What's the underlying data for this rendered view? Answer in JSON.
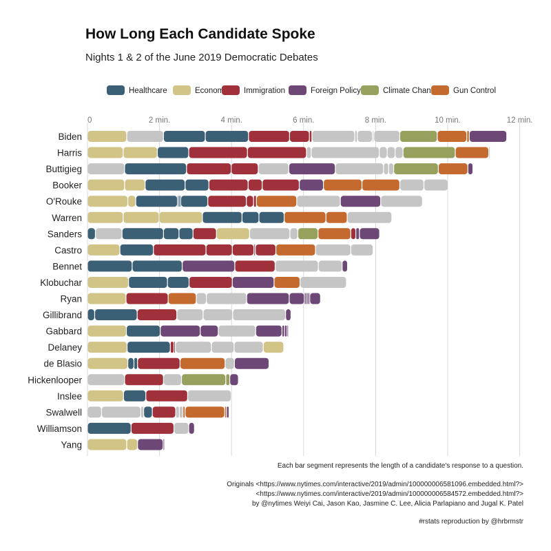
{
  "chart_data": {
    "type": "bar",
    "title": "How Long Each Candidate Spoke",
    "subtitle": "Nights 1 & 2 of the June 2019 Democratic Debates",
    "xlabel": "",
    "ylabel": "",
    "xlim": [
      0,
      12
    ],
    "x_ticks": [
      0,
      2,
      4,
      6,
      8,
      10,
      12
    ],
    "x_tick_labels": [
      "0",
      "2 min.",
      "4 min.",
      "6 min.",
      "8 min.",
      "10 min.",
      "12 min."
    ],
    "grid": "vertical",
    "legend_position": "top",
    "legend": [
      {
        "name": "Healthcare",
        "color": "#3b5f75"
      },
      {
        "name": "Economy",
        "color": "#d2c487"
      },
      {
        "name": "Immigration",
        "color": "#a0303a"
      },
      {
        "name": "Foreign Policy",
        "color": "#6d4776"
      },
      {
        "name": "Climate Change",
        "color": "#97a05c"
      },
      {
        "name": "Gun Control",
        "color": "#c46a2f"
      }
    ],
    "other_color": "#c5c5c5",
    "series_note": "Each candidate's segments in order; seg = [topic, minutes]",
    "candidates": [
      {
        "name": "Biden",
        "segments": [
          [
            "Economy",
            1.09
          ],
          [
            "Other",
            1.02
          ],
          [
            "Healthcare",
            1.16
          ],
          [
            "Healthcare",
            1.2
          ],
          [
            "Immigration",
            1.14
          ],
          [
            "Immigration",
            0.55
          ],
          [
            "Immigration",
            0.07
          ],
          [
            "Other",
            1.19
          ],
          [
            "Other",
            0.07
          ],
          [
            "Other",
            0.42
          ],
          [
            "Other",
            0.04
          ],
          [
            "Other",
            0.72
          ],
          [
            "Climate Change",
            1.04
          ],
          [
            "Gun Control",
            0.82
          ],
          [
            "Gun Control",
            0.07
          ],
          [
            "Foreign Policy",
            1.04
          ]
        ]
      },
      {
        "name": "Harris",
        "segments": [
          [
            "Economy",
            0.99
          ],
          [
            "Economy",
            0.95
          ],
          [
            "Healthcare",
            0.87
          ],
          [
            "Immigration",
            1.63
          ],
          [
            "Immigration",
            1.64
          ],
          [
            "Other",
            0.13
          ],
          [
            "Other",
            1.89
          ],
          [
            "Other",
            0.22
          ],
          [
            "Other",
            0.22
          ],
          [
            "Other",
            0.22
          ],
          [
            "Climate Change",
            1.45
          ],
          [
            "Gun Control",
            0.93
          ],
          [
            "Other",
            0.04
          ]
        ]
      },
      {
        "name": "Buttigieg",
        "segments": [
          [
            "Other",
            1.03
          ],
          [
            "Healthcare",
            1.72
          ],
          [
            "Immigration",
            1.24
          ],
          [
            "Immigration",
            0.75
          ],
          [
            "Other",
            0.85
          ],
          [
            "Foreign Policy",
            1.29
          ],
          [
            "Other",
            1.34
          ],
          [
            "Other",
            0.14
          ],
          [
            "Other",
            0.14
          ],
          [
            "Climate Change",
            1.24
          ],
          [
            "Gun Control",
            0.82
          ],
          [
            "Foreign Policy",
            0.14
          ]
        ]
      },
      {
        "name": "Booker",
        "segments": [
          [
            "Economy",
            1.03
          ],
          [
            "Economy",
            0.57
          ],
          [
            "Healthcare",
            1.11
          ],
          [
            "Healthcare",
            0.66
          ],
          [
            "Immigration",
            1.09
          ],
          [
            "Immigration",
            0.39
          ],
          [
            "Immigration",
            1.03
          ],
          [
            "Foreign Policy",
            0.67
          ],
          [
            "Gun Control",
            1.07
          ],
          [
            "Gun Control",
            1.05
          ],
          [
            "Other",
            0.67
          ],
          [
            "Other",
            0.67
          ]
        ]
      },
      {
        "name": "O'Rouke",
        "segments": [
          [
            "Economy",
            1.12
          ],
          [
            "Economy",
            0.22
          ],
          [
            "Healthcare",
            1.16
          ],
          [
            "Healthcare",
            0.03
          ],
          [
            "Healthcare",
            0.03
          ],
          [
            "Healthcare",
            0.03
          ],
          [
            "Healthcare",
            0.75
          ],
          [
            "Immigration",
            1.07
          ],
          [
            "Immigration",
            0.2
          ],
          [
            "Immigration",
            0.08
          ],
          [
            "Gun Control",
            1.12
          ],
          [
            "Other",
            1.21
          ],
          [
            "Foreign Policy",
            1.12
          ],
          [
            "Other",
            1.16
          ]
        ]
      },
      {
        "name": "Warren",
        "segments": [
          [
            "Economy",
            0.99
          ],
          [
            "Economy",
            1.0
          ],
          [
            "Economy",
            1.2
          ],
          [
            "Healthcare",
            1.1
          ],
          [
            "Healthcare",
            0.47
          ],
          [
            "Healthcare",
            0.7
          ],
          [
            "Gun Control",
            1.16
          ],
          [
            "Gun Control",
            0.59
          ],
          [
            "Other",
            1.24
          ]
        ]
      },
      {
        "name": "Sanders",
        "segments": [
          [
            "Healthcare",
            0.22
          ],
          [
            "Other",
            0.74
          ],
          [
            "Healthcare",
            1.15
          ],
          [
            "Healthcare",
            0.43
          ],
          [
            "Healthcare",
            0.39
          ],
          [
            "Immigration",
            0.65
          ],
          [
            "Economy",
            0.92
          ],
          [
            "Other",
            1.12
          ],
          [
            "Other",
            0.22
          ],
          [
            "Climate Change",
            0.56
          ],
          [
            "Gun Control",
            0.91
          ],
          [
            "Immigration",
            0.14
          ],
          [
            "Foreign Policy",
            0.1
          ],
          [
            "Foreign Policy",
            0.56
          ]
        ]
      },
      {
        "name": "Castro",
        "segments": [
          [
            "Economy",
            0.9
          ],
          [
            "Healthcare",
            0.93
          ],
          [
            "Immigration",
            1.46
          ],
          [
            "Immigration",
            0.73
          ],
          [
            "Immigration",
            0.6
          ],
          [
            "Immigration",
            0.04
          ],
          [
            "Immigration",
            0.57
          ],
          [
            "Gun Control",
            1.1
          ],
          [
            "Other",
            0.98
          ],
          [
            "Other",
            0.62
          ]
        ]
      },
      {
        "name": "Bennet",
        "segments": [
          [
            "Healthcare",
            1.24
          ],
          [
            "Healthcare",
            1.39
          ],
          [
            "Foreign Policy",
            1.46
          ],
          [
            "Immigration",
            1.12
          ],
          [
            "Other",
            1.2
          ],
          [
            "Other",
            0.66
          ],
          [
            "Foreign Policy",
            0.15
          ]
        ]
      },
      {
        "name": "Klobuchar",
        "segments": [
          [
            "Economy",
            1.14
          ],
          [
            "Healthcare",
            1.08
          ],
          [
            "Healthcare",
            0.6
          ],
          [
            "Immigration",
            1.2
          ],
          [
            "Foreign Policy",
            1.16
          ],
          [
            "Gun Control",
            0.72
          ],
          [
            "Other",
            1.29
          ]
        ]
      },
      {
        "name": "Ryan",
        "segments": [
          [
            "Economy",
            1.07
          ],
          [
            "Immigration",
            1.17
          ],
          [
            "Gun Control",
            0.78
          ],
          [
            "Other",
            0.28
          ],
          [
            "Other",
            1.12
          ],
          [
            "Foreign Policy",
            1.18
          ],
          [
            "Foreign Policy",
            0.42
          ],
          [
            "Foreign Policy",
            0.05
          ],
          [
            "Foreign Policy",
            0.05
          ],
          [
            "Foreign Policy",
            0.05
          ],
          [
            "Foreign Policy",
            0.3
          ]
        ]
      },
      {
        "name": "Gillibrand",
        "segments": [
          [
            "Healthcare",
            0.2
          ],
          [
            "Healthcare",
            1.18
          ],
          [
            "Immigration",
            1.1
          ],
          [
            "Other",
            0.73
          ],
          [
            "Other",
            0.82
          ],
          [
            "Other",
            1.47
          ],
          [
            "Foreign Policy",
            0.15
          ]
        ]
      },
      {
        "name": "Gabbard",
        "segments": [
          [
            "Economy",
            1.08
          ],
          [
            "Healthcare",
            0.94
          ],
          [
            "Foreign Policy",
            1.11
          ],
          [
            "Foreign Policy",
            0.5
          ],
          [
            "Other",
            1.04
          ],
          [
            "Foreign Policy",
            0.73
          ],
          [
            "Foreign Policy",
            0.07
          ],
          [
            "Foreign Policy",
            0.07
          ],
          [
            "Foreign Policy",
            0.04
          ]
        ]
      },
      {
        "name": "Delaney",
        "segments": [
          [
            "Economy",
            1.1
          ],
          [
            "Healthcare",
            1.2
          ],
          [
            "Immigration",
            0.1
          ],
          [
            "Immigration",
            0.04
          ],
          [
            "Other",
            1.0
          ],
          [
            "Other",
            0.63
          ],
          [
            "Other",
            0.81
          ],
          [
            "Economy",
            0.57
          ]
        ]
      },
      {
        "name": "de Blasio",
        "segments": [
          [
            "Economy",
            1.12
          ],
          [
            "Healthcare",
            0.17
          ],
          [
            "Healthcare",
            0.1
          ],
          [
            "Immigration",
            1.18
          ],
          [
            "Gun Control",
            1.25
          ],
          [
            "Other",
            0.26
          ],
          [
            "Foreign Policy",
            0.96
          ]
        ]
      },
      {
        "name": "Hickenlooper",
        "segments": [
          [
            "Other",
            1.03
          ],
          [
            "Immigration",
            1.08
          ],
          [
            "Other",
            0.5
          ],
          [
            "Climate Change",
            1.23
          ],
          [
            "Climate Change",
            0.11
          ],
          [
            "Foreign Policy",
            0.24
          ]
        ]
      },
      {
        "name": "Inslee",
        "segments": [
          [
            "Economy",
            1.0
          ],
          [
            "Healthcare",
            0.62
          ],
          [
            "Immigration",
            1.16
          ],
          [
            "Other",
            1.21
          ]
        ]
      },
      {
        "name": "Swalwell",
        "segments": [
          [
            "Other",
            0.39
          ],
          [
            "Other",
            1.09
          ],
          [
            "Other",
            0.08
          ],
          [
            "Healthcare",
            0.24
          ],
          [
            "Immigration",
            0.65
          ],
          [
            "Other",
            0.1
          ],
          [
            "Other",
            0.1
          ],
          [
            "Gun Control",
            0.06
          ],
          [
            "Gun Control",
            1.1
          ],
          [
            "Gun Control",
            0.05
          ],
          [
            "Foreign Policy",
            0.07
          ]
        ]
      },
      {
        "name": "Williamson",
        "segments": [
          [
            "Healthcare",
            1.21
          ],
          [
            "Immigration",
            1.19
          ],
          [
            "Other",
            0.41
          ],
          [
            "Foreign Policy",
            0.16
          ]
        ]
      },
      {
        "name": "Yang",
        "segments": [
          [
            "Economy",
            1.09
          ],
          [
            "Economy",
            0.3
          ],
          [
            "Foreign Policy",
            0.71
          ],
          [
            "Foreign Policy",
            0.04
          ]
        ]
      }
    ],
    "annotations": [
      "Each bar segment represents the length of a candidate's response to a question.",
      "Originals <https://www.nytimes.com/interactive/2019/admin/100000006581096.embedded.html?>",
      "<https://www.nytimes.com/interactive/2019/admin/100000006584572.embedded.html?>",
      "by @nytimes Weiyi Cai, Jason Kao, Jasmine C. Lee, Alicia Parlapiano and Jugal K. Patel",
      "#rstats reproduction by @hrbrmstr"
    ]
  }
}
